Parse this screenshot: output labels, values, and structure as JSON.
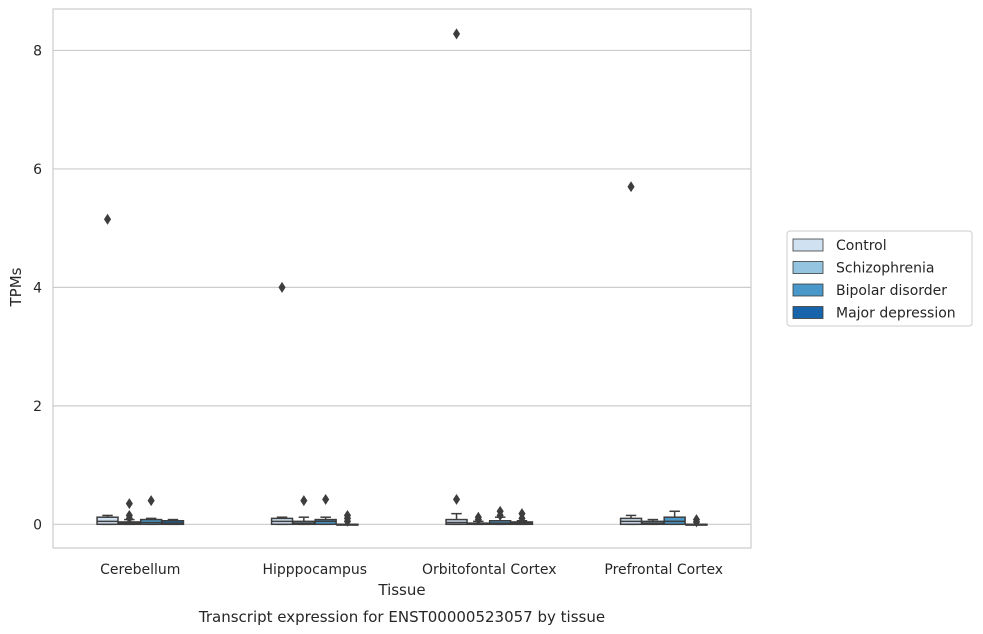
{
  "chart_data": {
    "type": "box",
    "caption": "Transcript expression for ENST00000523057 by tissue",
    "xlabel": "Tissue",
    "ylabel": "TPMs",
    "ylim": [
      -0.4,
      8.7
    ],
    "yticks": [
      0,
      2,
      4,
      6,
      8
    ],
    "grid": true,
    "legend_position": "right",
    "categories": [
      "Cerebellum",
      "Hipppocampus",
      "Orbitofontal Cortex",
      "Prefrontal Cortex"
    ],
    "series": [
      {
        "name": "Control",
        "color": "#d0e1f2",
        "boxes": [
          {
            "min": 0.0,
            "q1": 0.0,
            "median": 0.05,
            "q3": 0.12,
            "max": 0.15,
            "outliers": [
              5.15
            ]
          },
          {
            "min": 0.0,
            "q1": 0.0,
            "median": 0.05,
            "q3": 0.1,
            "max": 0.12,
            "outliers": [
              4.0
            ]
          },
          {
            "min": 0.0,
            "q1": 0.0,
            "median": 0.03,
            "q3": 0.08,
            "max": 0.18,
            "outliers": [
              8.28,
              0.42
            ]
          },
          {
            "min": 0.0,
            "q1": 0.0,
            "median": 0.05,
            "q3": 0.1,
            "max": 0.15,
            "outliers": [
              5.7
            ]
          }
        ]
      },
      {
        "name": "Schizophrenia",
        "color": "#94c4df",
        "boxes": [
          {
            "min": 0.0,
            "q1": 0.0,
            "median": 0.02,
            "q3": 0.04,
            "max": 0.08,
            "outliers": [
              0.35,
              0.15,
              0.1
            ]
          },
          {
            "min": 0.0,
            "q1": 0.0,
            "median": 0.02,
            "q3": 0.05,
            "max": 0.12,
            "outliers": [
              0.4
            ]
          },
          {
            "min": 0.0,
            "q1": 0.0,
            "median": 0.0,
            "q3": 0.02,
            "max": 0.05,
            "outliers": [
              0.12,
              0.08
            ]
          },
          {
            "min": 0.0,
            "q1": 0.0,
            "median": 0.02,
            "q3": 0.05,
            "max": 0.08,
            "outliers": []
          }
        ]
      },
      {
        "name": "Bipolar disorder",
        "color": "#4a98c9",
        "boxes": [
          {
            "min": 0.0,
            "q1": 0.0,
            "median": 0.03,
            "q3": 0.08,
            "max": 0.1,
            "outliers": [
              0.4
            ]
          },
          {
            "min": 0.0,
            "q1": 0.0,
            "median": 0.05,
            "q3": 0.08,
            "max": 0.12,
            "outliers": [
              0.42
            ]
          },
          {
            "min": 0.0,
            "q1": 0.0,
            "median": 0.02,
            "q3": 0.06,
            "max": 0.12,
            "outliers": [
              0.22,
              0.15
            ]
          },
          {
            "min": 0.0,
            "q1": 0.0,
            "median": 0.05,
            "q3": 0.12,
            "max": 0.22,
            "outliers": []
          }
        ]
      },
      {
        "name": "Major depression",
        "color": "#1764ab",
        "boxes": [
          {
            "min": 0.0,
            "q1": 0.0,
            "median": 0.02,
            "q3": 0.06,
            "max": 0.08,
            "outliers": []
          },
          {
            "min": 0.0,
            "q1": 0.0,
            "median": 0.0,
            "q3": 0.0,
            "max": 0.0,
            "outliers": [
              0.15,
              0.1,
              0.05
            ]
          },
          {
            "min": 0.0,
            "q1": 0.0,
            "median": 0.02,
            "q3": 0.04,
            "max": 0.06,
            "outliers": [
              0.18,
              0.1
            ]
          },
          {
            "min": 0.0,
            "q1": 0.0,
            "median": 0.0,
            "q3": 0.0,
            "max": 0.0,
            "outliers": [
              0.08,
              0.04
            ]
          }
        ]
      }
    ]
  }
}
